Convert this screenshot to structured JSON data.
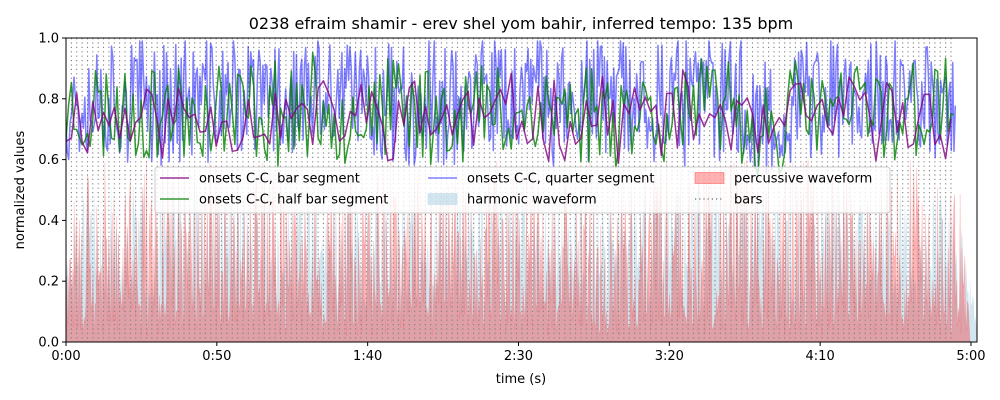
{
  "chart_data": {
    "type": "line",
    "title": "0238 efraim shamir - erev shel yom bahir, inferred tempo: 135 bpm",
    "xlabel": "time (s)",
    "ylabel": "normalized values",
    "xlim": [
      0,
      302
    ],
    "ylim": [
      0,
      1.0
    ],
    "x_ticks": [
      {
        "value": 0,
        "label": "0:00"
      },
      {
        "value": 50,
        "label": "0:50"
      },
      {
        "value": 100,
        "label": "1:40"
      },
      {
        "value": 150,
        "label": "2:30"
      },
      {
        "value": 200,
        "label": "3:20"
      },
      {
        "value": 250,
        "label": "4:10"
      },
      {
        "value": 300,
        "label": "5:00"
      }
    ],
    "y_ticks": [
      {
        "value": 0.0,
        "label": "0.0"
      },
      {
        "value": 0.2,
        "label": "0.2"
      },
      {
        "value": 0.4,
        "label": "0.4"
      },
      {
        "value": 0.6,
        "label": "0.6"
      },
      {
        "value": 0.8,
        "label": "0.8"
      },
      {
        "value": 1.0,
        "label": "1.0"
      }
    ],
    "bar_interval_s": 1.778,
    "bars_range": [
      0,
      295
    ],
    "legend_position": "center",
    "series": [
      {
        "name": "onsets C-C, bar segment",
        "kind": "line",
        "color": "#800080",
        "opacity": 0.8
      },
      {
        "name": "onsets C-C, half bar segment",
        "kind": "line",
        "color": "#008000",
        "opacity": 0.8
      },
      {
        "name": "onsets C-C, quarter segment",
        "kind": "line",
        "color": "#0000ff",
        "opacity": 0.5
      },
      {
        "name": "harmonic waveform",
        "kind": "area",
        "color": "#a6cde2",
        "opacity": 0.5
      },
      {
        "name": "percussive waveform",
        "kind": "area",
        "color": "#ff0000",
        "opacity": 0.3
      },
      {
        "name": "bars",
        "kind": "vlines",
        "color": "#808080",
        "style": "dotted"
      }
    ],
    "series_profiles": {
      "bar_segment": {
        "step_s": 1.778,
        "mean": 0.74,
        "amplitude": 0.12,
        "seed": 11
      },
      "half_bar_segment": {
        "step_s": 0.889,
        "mean": 0.76,
        "amplitude": 0.16,
        "seed": 23
      },
      "quarter_segment": {
        "step_s": 0.444,
        "mean": 0.8,
        "amplitude": 0.2,
        "seed": 37
      },
      "harmonic_envelope": {
        "step_s": 0.3,
        "mean": 0.32,
        "amplitude": 0.22,
        "seed": 51,
        "end_s": 303
      },
      "percussive_envelope": {
        "step_s": 0.3,
        "mean": 0.32,
        "amplitude": 0.28,
        "seed": 73,
        "end_s": 300
      }
    }
  }
}
